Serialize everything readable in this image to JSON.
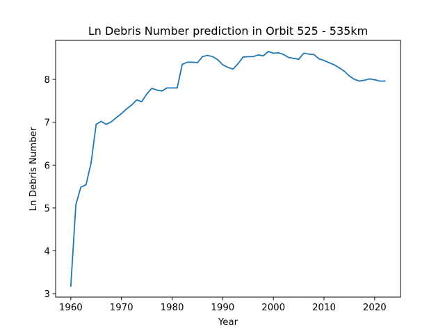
{
  "chart_data": {
    "type": "line",
    "title": "Ln Debris Number prediction in Orbit 525 - 535km",
    "xlabel": "Year",
    "ylabel": "Ln Debris Number",
    "xlim": [
      1957,
      2025.1
    ],
    "ylim": [
      2.92,
      8.91
    ],
    "xticks": [
      1960,
      1970,
      1980,
      1990,
      2000,
      2010,
      2020
    ],
    "yticks": [
      3,
      4,
      5,
      6,
      7,
      8
    ],
    "grid": false,
    "line_color": "#1f77b4",
    "series": [
      {
        "x": [
          1960,
          1961,
          1962,
          1963,
          1964,
          1965,
          1966,
          1967,
          1968,
          1969,
          1970,
          1971,
          1972,
          1973,
          1974,
          1975,
          1976,
          1977,
          1978,
          1979,
          1980,
          1981,
          1982,
          1983,
          1984,
          1985,
          1986,
          1987,
          1988,
          1989,
          1990,
          1991,
          1992,
          1993,
          1994,
          1995,
          1996,
          1997,
          1998,
          1999,
          2000,
          2001,
          2002,
          2003,
          2004,
          2005,
          2006,
          2007,
          2008,
          2009,
          2010,
          2011,
          2012,
          2013,
          2014,
          2015,
          2016,
          2017,
          2018,
          2019,
          2020,
          2021,
          2022
        ],
        "y": [
          3.18,
          5.08,
          5.49,
          5.54,
          6.05,
          6.95,
          7.02,
          6.95,
          7.01,
          7.11,
          7.2,
          7.31,
          7.4,
          7.52,
          7.48,
          7.66,
          7.79,
          7.75,
          7.73,
          7.8,
          7.8,
          7.8,
          8.35,
          8.4,
          8.4,
          8.39,
          8.53,
          8.56,
          8.53,
          8.46,
          8.34,
          8.28,
          8.24,
          8.36,
          8.52,
          8.53,
          8.53,
          8.57,
          8.55,
          8.65,
          8.61,
          8.62,
          8.58,
          8.51,
          8.49,
          8.47,
          8.61,
          8.59,
          8.58,
          8.48,
          8.44,
          8.39,
          8.34,
          8.27,
          8.19,
          8.08,
          8.0,
          7.96,
          7.98,
          8.01,
          7.99,
          7.96,
          7.96
        ]
      }
    ]
  }
}
